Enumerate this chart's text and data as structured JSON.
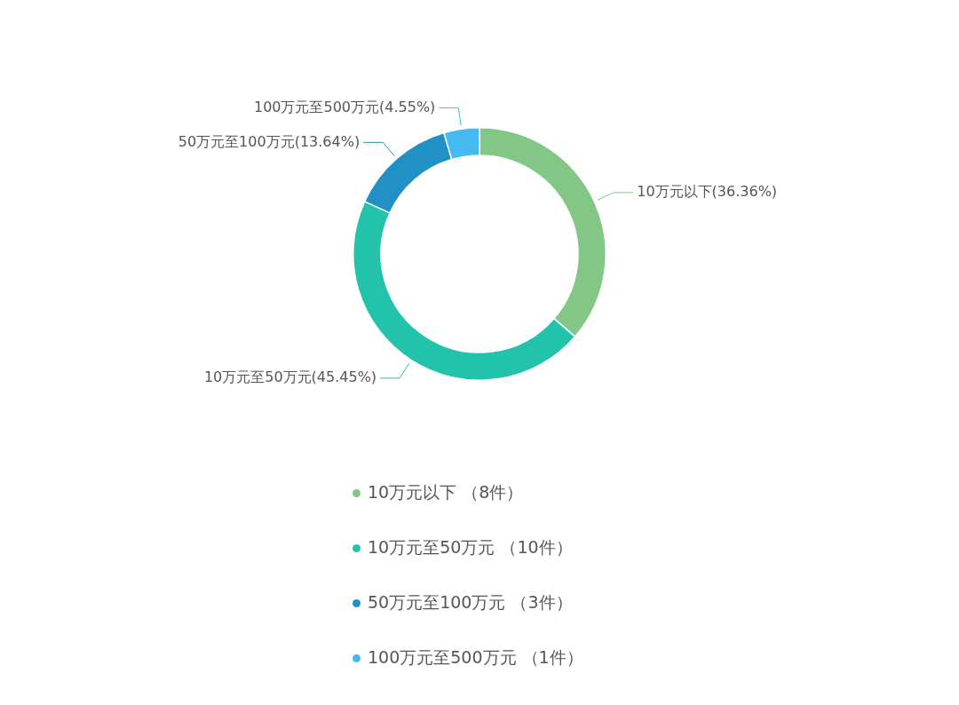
{
  "chart_data": {
    "type": "donut",
    "categories": [
      "10万元以下 （8件）",
      "10万元至50万元 （10件）",
      "50万元至100万元 （3件）",
      "100万元至500万元 （1件）"
    ],
    "values": [
      8,
      10,
      3,
      1
    ],
    "colors": [
      "#82c785",
      "#22c3aa",
      "#2190c4",
      "#45baf0"
    ],
    "annotations": [
      "10万元以下(36.36%)",
      "10万元至50万元(45.45%)",
      "50万元至100万元(13.64%)",
      "100万元至500万元(4.55%)"
    ],
    "legend": "bottom"
  }
}
